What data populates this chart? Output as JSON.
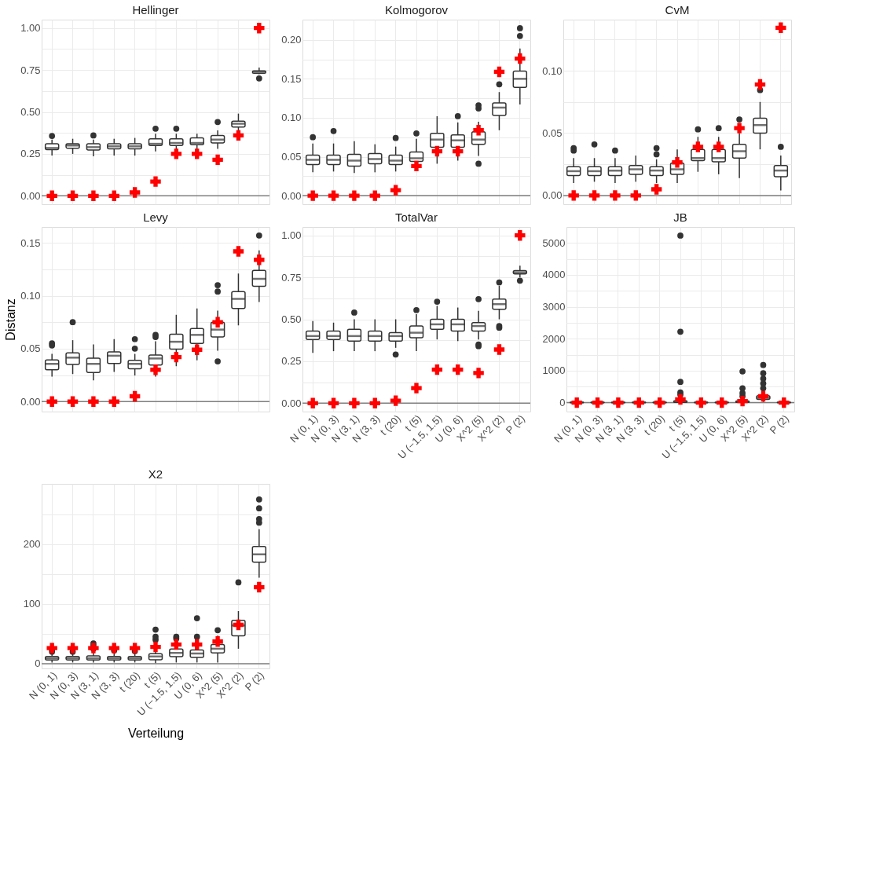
{
  "chart_data": [
    {
      "type": "box",
      "title": "Hellinger",
      "categories": [
        "N (0, 1)",
        "N (0, 3)",
        "N (3, 1)",
        "N (3, 3)",
        "t (20)",
        "t (5)",
        "U (−1.5, 1.5)",
        "U (0, 6)",
        "X^2 (5)",
        "X^2 (2)",
        "P (2)"
      ],
      "ylim": [
        -0.05,
        1.05
      ],
      "yticks": [
        {
          "value": 0,
          "label": "0.00"
        },
        {
          "value": 0.125,
          "label": null
        },
        {
          "value": 0.25,
          "label": "0.25"
        },
        {
          "value": 0.375,
          "label": null
        },
        {
          "value": 0.5,
          "label": "0.50"
        },
        {
          "value": 0.625,
          "label": null
        },
        {
          "value": 0.75,
          "label": "0.75"
        },
        {
          "value": 0.875,
          "label": null
        },
        {
          "value": 1,
          "label": "1.00"
        }
      ],
      "grid": true,
      "tick_labels": "y",
      "ref_lines": [
        {
          "axis": "y",
          "value": 0,
          "color": "#7f7f7f"
        }
      ],
      "series": [
        {
          "type": "box",
          "color": "#333333",
          "boxes": [
            {
              "low": 0.24,
              "q1": 0.275,
              "median": 0.285,
              "q3": 0.31,
              "high": 0.335,
              "outliers": [
                0.357
              ]
            },
            {
              "low": 0.25,
              "q1": 0.283,
              "median": 0.3,
              "q3": 0.31,
              "high": 0.34
            },
            {
              "low": 0.235,
              "q1": 0.273,
              "median": 0.29,
              "q3": 0.31,
              "high": 0.335,
              "outliers": [
                0.36
              ]
            },
            {
              "low": 0.24,
              "q1": 0.28,
              "median": 0.295,
              "q3": 0.31,
              "high": 0.34
            },
            {
              "low": 0.24,
              "q1": 0.28,
              "median": 0.295,
              "q3": 0.31,
              "high": 0.345
            },
            {
              "low": 0.265,
              "q1": 0.3,
              "median": 0.31,
              "q3": 0.34,
              "high": 0.37,
              "outliers": [
                0.4
              ]
            },
            {
              "low": 0.265,
              "q1": 0.3,
              "median": 0.315,
              "q3": 0.34,
              "high": 0.37,
              "outliers": [
                0.4
              ]
            },
            {
              "low": 0.27,
              "q1": 0.305,
              "median": 0.315,
              "q3": 0.345,
              "high": 0.37
            },
            {
              "low": 0.28,
              "q1": 0.315,
              "median": 0.335,
              "q3": 0.36,
              "high": 0.39,
              "outliers": [
                0.44
              ]
            },
            {
              "low": 0.39,
              "q1": 0.41,
              "median": 0.43,
              "q3": 0.445,
              "high": 0.49
            },
            {
              "low": 0.725,
              "q1": 0.73,
              "median": 0.74,
              "q3": 0.745,
              "high": 0.765,
              "outliers": [
                0.7
              ]
            }
          ]
        },
        {
          "type": "scatter",
          "color": "#ff0000",
          "marker": "cross",
          "x": [
            "N (0, 1)",
            "N (0, 3)",
            "N (3, 1)",
            "N (3, 3)",
            "t (20)",
            "t (5)",
            "U (−1.5, 1.5)",
            "U (0, 6)",
            "X^2 (5)",
            "X^2 (2)",
            "P (2)"
          ],
          "values": [
            0,
            0,
            0,
            0,
            0.02,
            0.085,
            0.25,
            0.25,
            0.215,
            0.36,
            1.0
          ]
        }
      ]
    },
    {
      "type": "box",
      "title": "Kolmogorov",
      "categories": [
        "N (0, 1)",
        "N (0, 3)",
        "N (3, 1)",
        "N (3, 3)",
        "t (20)",
        "t (5)",
        "U (−1.5, 1.5)",
        "U (0, 6)",
        "X^2 (5)",
        "X^2 (2)",
        "P (2)"
      ],
      "ylim": [
        -0.011,
        0.226
      ],
      "yticks": [
        {
          "value": 0,
          "label": "0.00"
        },
        {
          "value": 0.025,
          "label": null
        },
        {
          "value": 0.05,
          "label": "0.05"
        },
        {
          "value": 0.075,
          "label": null
        },
        {
          "value": 0.1,
          "label": "0.10"
        },
        {
          "value": 0.125,
          "label": null
        },
        {
          "value": 0.15,
          "label": "0.15"
        },
        {
          "value": 0.175,
          "label": null
        },
        {
          "value": 0.2,
          "label": "0.20"
        }
      ],
      "grid": true,
      "tick_labels": "y",
      "ref_lines": [
        {
          "axis": "y",
          "value": 0,
          "color": "#7f7f7f"
        }
      ],
      "series": [
        {
          "type": "box",
          "color": "#333333",
          "boxes": [
            {
              "low": 0.03,
              "q1": 0.04,
              "median": 0.046,
              "q3": 0.052,
              "high": 0.067,
              "outliers": [
                0.075
              ]
            },
            {
              "low": 0.031,
              "q1": 0.04,
              "median": 0.046,
              "q3": 0.052,
              "high": 0.067,
              "outliers": [
                0.083
              ]
            },
            {
              "low": 0.029,
              "q1": 0.038,
              "median": 0.045,
              "q3": 0.053,
              "high": 0.07
            },
            {
              "low": 0.03,
              "q1": 0.041,
              "median": 0.047,
              "q3": 0.054,
              "high": 0.066
            },
            {
              "low": 0.031,
              "q1": 0.04,
              "median": 0.045,
              "q3": 0.052,
              "high": 0.063,
              "outliers": [
                0.074
              ]
            },
            {
              "low": 0.034,
              "q1": 0.044,
              "median": 0.048,
              "q3": 0.056,
              "high": 0.073,
              "outliers": [
                0.08
              ]
            },
            {
              "low": 0.041,
              "q1": 0.062,
              "median": 0.072,
              "q3": 0.08,
              "high": 0.102
            },
            {
              "low": 0.045,
              "q1": 0.062,
              "median": 0.071,
              "q3": 0.078,
              "high": 0.094,
              "outliers": [
                0.102
              ]
            },
            {
              "low": 0.051,
              "q1": 0.066,
              "median": 0.072,
              "q3": 0.082,
              "high": 0.095,
              "outliers": [
                0.041,
                0.112,
                0.116
              ]
            },
            {
              "low": 0.084,
              "q1": 0.103,
              "median": 0.113,
              "q3": 0.119,
              "high": 0.133,
              "outliers": [
                0.143
              ]
            },
            {
              "low": 0.117,
              "q1": 0.139,
              "median": 0.15,
              "q3": 0.16,
              "high": 0.189,
              "outliers": [
                0.205,
                0.215
              ]
            }
          ]
        },
        {
          "type": "scatter",
          "color": "#ff0000",
          "marker": "cross",
          "x": [
            "N (0, 1)",
            "N (0, 3)",
            "N (3, 1)",
            "N (3, 3)",
            "t (20)",
            "t (5)",
            "U (−1.5, 1.5)",
            "U (0, 6)",
            "X^2 (5)",
            "X^2 (2)",
            "P (2)"
          ],
          "values": [
            0,
            0,
            0,
            0,
            0.007,
            0.038,
            0.057,
            0.057,
            0.084,
            0.159,
            0.176
          ]
        }
      ]
    },
    {
      "type": "box",
      "title": "CvM",
      "categories": [
        "N (0, 1)",
        "N (0, 3)",
        "N (3, 1)",
        "N (3, 3)",
        "t (20)",
        "t (5)",
        "U (−1.5, 1.5)",
        "U (0, 6)",
        "X^2 (5)",
        "X^2 (2)",
        "P (2)"
      ],
      "ylim": [
        -0.007,
        0.141
      ],
      "yticks": [
        {
          "value": 0,
          "label": "0.00"
        },
        {
          "value": 0.025,
          "label": null
        },
        {
          "value": 0.05,
          "label": "0.05"
        },
        {
          "value": 0.075,
          "label": null
        },
        {
          "value": 0.1,
          "label": "0.10"
        },
        {
          "value": 0.125,
          "label": null
        }
      ],
      "grid": true,
      "tick_labels": "y",
      "ref_lines": [
        {
          "axis": "y",
          "value": 0,
          "color": "#7f7f7f"
        }
      ],
      "series": [
        {
          "type": "box",
          "color": "#333333",
          "boxes": [
            {
              "low": 0.01,
              "q1": 0.016,
              "median": 0.0195,
              "q3": 0.023,
              "high": 0.03,
              "outliers": [
                0.036,
                0.038
              ]
            },
            {
              "low": 0.011,
              "q1": 0.016,
              "median": 0.0195,
              "q3": 0.023,
              "high": 0.03,
              "outliers": [
                0.041
              ]
            },
            {
              "low": 0.01,
              "q1": 0.016,
              "median": 0.02,
              "q3": 0.023,
              "high": 0.03,
              "outliers": [
                0.036
              ]
            },
            {
              "low": 0.011,
              "q1": 0.017,
              "median": 0.021,
              "q3": 0.024,
              "high": 0.032
            },
            {
              "low": 0.01,
              "q1": 0.016,
              "median": 0.02,
              "q3": 0.023,
              "high": 0.029,
              "outliers": [
                0.033,
                0.038
              ]
            },
            {
              "low": 0.01,
              "q1": 0.017,
              "median": 0.021,
              "q3": 0.026,
              "high": 0.037
            },
            {
              "low": 0.019,
              "q1": 0.028,
              "median": 0.03,
              "q3": 0.037,
              "high": 0.047,
              "outliers": [
                0.053
              ]
            },
            {
              "low": 0.017,
              "q1": 0.027,
              "median": 0.03,
              "q3": 0.037,
              "high": 0.047,
              "outliers": [
                0.054
              ]
            },
            {
              "low": 0.014,
              "q1": 0.03,
              "median": 0.0355,
              "q3": 0.041,
              "high": 0.05,
              "outliers": [
                0.061
              ]
            },
            {
              "low": 0.037,
              "q1": 0.05,
              "median": 0.0565,
              "q3": 0.062,
              "high": 0.075,
              "outliers": [
                0.0845
              ]
            },
            {
              "low": 0.004,
              "q1": 0.015,
              "median": 0.02,
              "q3": 0.024,
              "high": 0.032,
              "outliers": [
                0.039
              ]
            }
          ]
        },
        {
          "type": "scatter",
          "color": "#ff0000",
          "marker": "cross",
          "x": [
            "N (0, 1)",
            "N (0, 3)",
            "N (3, 1)",
            "N (3, 3)",
            "t (20)",
            "t (5)",
            "U (−1.5, 1.5)",
            "U (0, 6)",
            "X^2 (5)",
            "X^2 (2)",
            "P (2)"
          ],
          "values": [
            0,
            0,
            0,
            0,
            0.005,
            0.0265,
            0.039,
            0.039,
            0.054,
            0.089,
            0.1345
          ]
        }
      ]
    },
    {
      "type": "box",
      "title": "Levy",
      "ylabel": "Distanz",
      "categories": [
        "N (0, 1)",
        "N (0, 3)",
        "N (3, 1)",
        "N (3, 3)",
        "t (20)",
        "t (5)",
        "U (−1.5, 1.5)",
        "U (0, 6)",
        "X^2 (5)",
        "X^2 (2)",
        "P (2)"
      ],
      "ylim": [
        -0.0095,
        0.165
      ],
      "yticks": [
        {
          "value": 0,
          "label": "0.00"
        },
        {
          "value": 0.025,
          "label": null
        },
        {
          "value": 0.05,
          "label": "0.05"
        },
        {
          "value": 0.075,
          "label": null
        },
        {
          "value": 0.1,
          "label": "0.10"
        },
        {
          "value": 0.125,
          "label": null
        },
        {
          "value": 0.15,
          "label": "0.15"
        }
      ],
      "grid": true,
      "tick_labels": "y",
      "ref_lines": [
        {
          "axis": "y",
          "value": 0,
          "color": "#7f7f7f"
        }
      ],
      "series": [
        {
          "type": "box",
          "color": "#333333",
          "boxes": [
            {
              "low": 0.0235,
              "q1": 0.03,
              "median": 0.0356,
              "q3": 0.0394,
              "high": 0.045,
              "outliers": [
                0.053,
                0.055
              ]
            },
            {
              "low": 0.026,
              "q1": 0.035,
              "median": 0.0415,
              "q3": 0.046,
              "high": 0.058,
              "outliers": [
                0.075
              ]
            },
            {
              "low": 0.02,
              "q1": 0.0275,
              "median": 0.0356,
              "q3": 0.041,
              "high": 0.054
            },
            {
              "low": 0.028,
              "q1": 0.036,
              "median": 0.0433,
              "q3": 0.047,
              "high": 0.059
            },
            {
              "low": 0.0246,
              "q1": 0.031,
              "median": 0.0356,
              "q3": 0.039,
              "high": 0.045,
              "outliers": [
                0.05,
                0.059
              ]
            },
            {
              "low": 0.0235,
              "q1": 0.0345,
              "median": 0.0407,
              "q3": 0.044,
              "high": 0.057,
              "outliers": [
                0.061,
                0.063
              ]
            },
            {
              "low": 0.0334,
              "q1": 0.0495,
              "median": 0.0565,
              "q3": 0.0636,
              "high": 0.082
            },
            {
              "low": 0.039,
              "q1": 0.055,
              "median": 0.063,
              "q3": 0.069,
              "high": 0.088
            },
            {
              "low": 0.048,
              "q1": 0.061,
              "median": 0.068,
              "q3": 0.075,
              "high": 0.086,
              "outliers": [
                0.038,
                0.104,
                0.11
              ]
            },
            {
              "low": 0.072,
              "q1": 0.088,
              "median": 0.097,
              "q3": 0.104,
              "high": 0.121
            },
            {
              "low": 0.094,
              "q1": 0.109,
              "median": 0.116,
              "q3": 0.124,
              "high": 0.143,
              "outliers": [
                0.157
              ]
            }
          ]
        },
        {
          "type": "scatter",
          "color": "#ff0000",
          "marker": "cross",
          "x": [
            "N (0, 1)",
            "N (0, 3)",
            "N (3, 1)",
            "N (3, 3)",
            "t (20)",
            "t (5)",
            "U (−1.5, 1.5)",
            "U (0, 6)",
            "X^2 (5)",
            "X^2 (2)",
            "P (2)"
          ],
          "values": [
            0,
            0,
            0,
            0,
            0.005,
            0.03,
            0.042,
            0.049,
            0.075,
            0.142,
            0.134
          ]
        }
      ]
    },
    {
      "type": "box",
      "title": "TotalVar",
      "categories": [
        "N (0, 1)",
        "N (0, 3)",
        "N (3, 1)",
        "N (3, 3)",
        "t (20)",
        "t (5)",
        "U (−1.5, 1.5)",
        "U (0, 6)",
        "X^2 (5)",
        "X^2 (2)",
        "P (2)"
      ],
      "ylim": [
        -0.05,
        1.05
      ],
      "yticks": [
        {
          "value": 0,
          "label": "0.00"
        },
        {
          "value": 0.125,
          "label": null
        },
        {
          "value": 0.25,
          "label": "0.25"
        },
        {
          "value": 0.375,
          "label": null
        },
        {
          "value": 0.5,
          "label": "0.50"
        },
        {
          "value": 0.625,
          "label": null
        },
        {
          "value": 0.75,
          "label": "0.75"
        },
        {
          "value": 0.875,
          "label": null
        },
        {
          "value": 1,
          "label": "1.00"
        }
      ],
      "grid": true,
      "ref_lines": [
        {
          "axis": "y",
          "value": 0,
          "color": "#7f7f7f"
        }
      ],
      "series": [
        {
          "type": "box",
          "color": "#333333",
          "boxes": [
            {
              "low": 0.3,
              "q1": 0.38,
              "median": 0.4,
              "q3": 0.43,
              "high": 0.49
            },
            {
              "low": 0.31,
              "q1": 0.38,
              "median": 0.4,
              "q3": 0.43,
              "high": 0.48
            },
            {
              "low": 0.31,
              "q1": 0.37,
              "median": 0.4,
              "q3": 0.44,
              "high": 0.5,
              "outliers": [
                0.54
              ]
            },
            {
              "low": 0.31,
              "q1": 0.37,
              "median": 0.4,
              "q3": 0.43,
              "high": 0.5
            },
            {
              "low": 0.33,
              "q1": 0.37,
              "median": 0.4,
              "q3": 0.42,
              "high": 0.5,
              "outliers": [
                0.29
              ]
            },
            {
              "low": 0.31,
              "q1": 0.39,
              "median": 0.42,
              "q3": 0.46,
              "high": 0.53,
              "outliers": [
                0.555
              ]
            },
            {
              "low": 0.38,
              "q1": 0.44,
              "median": 0.47,
              "q3": 0.5,
              "high": 0.58,
              "outliers": [
                0.605
              ]
            },
            {
              "low": 0.37,
              "q1": 0.43,
              "median": 0.47,
              "q3": 0.5,
              "high": 0.57
            },
            {
              "low": 0.38,
              "q1": 0.43,
              "median": 0.46,
              "q3": 0.48,
              "high": 0.55,
              "outliers": [
                0.34,
                0.35,
                0.62
              ]
            },
            {
              "low": 0.5,
              "q1": 0.56,
              "median": 0.59,
              "q3": 0.62,
              "high": 0.7,
              "outliers": [
                0.45,
                0.46,
                0.72
              ]
            },
            {
              "low": 0.75,
              "q1": 0.77,
              "median": 0.78,
              "q3": 0.79,
              "high": 0.82,
              "outliers": [
                0.73
              ]
            }
          ]
        },
        {
          "type": "scatter",
          "color": "#ff0000",
          "marker": "cross",
          "x": [
            "N (0, 1)",
            "N (0, 3)",
            "N (3, 1)",
            "N (3, 3)",
            "t (20)",
            "t (5)",
            "U (−1.5, 1.5)",
            "U (0, 6)",
            "X^2 (5)",
            "X^2 (2)",
            "P (2)"
          ],
          "values": [
            0,
            0,
            0,
            0,
            0.015,
            0.09,
            0.2,
            0.2,
            0.18,
            0.32,
            1.0
          ]
        }
      ]
    },
    {
      "type": "box",
      "title": "JB",
      "categories": [
        "N (0, 1)",
        "N (0, 3)",
        "N (3, 1)",
        "N (3, 3)",
        "t (20)",
        "t (5)",
        "U (−1.5, 1.5)",
        "U (0, 6)",
        "X^2 (5)",
        "X^2 (2)",
        "P (2)"
      ],
      "ylim": [
        -280,
        5500
      ],
      "yticks": [
        0,
        {
          "value": 500,
          "label": null
        },
        1000,
        {
          "value": 1500,
          "label": null
        },
        2000,
        {
          "value": 2500,
          "label": null
        },
        3000,
        {
          "value": 3500,
          "label": null
        },
        4000,
        {
          "value": 4500,
          "label": null
        },
        5000
      ],
      "grid": true,
      "ref_lines": [
        {
          "axis": "y",
          "value": 0,
          "color": "#7f7f7f"
        }
      ],
      "series": [
        {
          "type": "box",
          "color": "#333333",
          "boxes": [
            {
              "low": 0,
              "q1": 2,
              "median": 5,
              "q3": 10,
              "high": 30
            },
            {
              "low": 0,
              "q1": 2,
              "median": 5,
              "q3": 10,
              "high": 30
            },
            {
              "low": 0,
              "q1": 2,
              "median": 5,
              "q3": 10,
              "high": 30
            },
            {
              "low": 0,
              "q1": 2,
              "median": 5,
              "q3": 10,
              "high": 30
            },
            {
              "low": 0,
              "q1": 2,
              "median": 5,
              "q3": 10,
              "high": 30
            },
            {
              "low": 0,
              "q1": 10,
              "median": 30,
              "q3": 60,
              "high": 150,
              "outliers": [
                250,
                320,
                650,
                2220,
                5230
              ]
            },
            {
              "low": 0,
              "q1": 2,
              "median": 5,
              "q3": 10,
              "high": 30
            },
            {
              "low": 0,
              "q1": 2,
              "median": 5,
              "q3": 10,
              "high": 30
            },
            {
              "low": 0,
              "q1": 10,
              "median": 30,
              "q3": 50,
              "high": 120,
              "outliers": [
                200,
                300,
                450,
                980
              ]
            },
            {
              "low": 20,
              "q1": 100,
              "median": 150,
              "q3": 220,
              "high": 350,
              "outliers": [
                450,
                600,
                750,
                920,
                1180
              ]
            },
            {
              "low": 0,
              "q1": 2,
              "median": 5,
              "q3": 10,
              "high": 30
            }
          ]
        },
        {
          "type": "scatter",
          "color": "#ff0000",
          "marker": "cross",
          "x": [
            "N (0, 1)",
            "N (0, 3)",
            "N (3, 1)",
            "N (3, 3)",
            "t (20)",
            "t (5)",
            "U (−1.5, 1.5)",
            "U (0, 6)",
            "X^2 (5)",
            "X^2 (2)",
            "P (2)"
          ],
          "values": [
            0,
            0,
            0,
            0,
            0,
            100,
            0,
            0,
            50,
            200,
            0
          ]
        }
      ]
    },
    {
      "type": "box",
      "title": "X2",
      "xlabel": "Verteilung",
      "categories": [
        "N (0, 1)",
        "N (0, 3)",
        "N (3, 1)",
        "N (3, 3)",
        "t (20)",
        "t (5)",
        "U (−1.5, 1.5)",
        "U (0, 6)",
        "X^2 (5)",
        "X^2 (2)",
        "P (2)"
      ],
      "ylim": [
        -8,
        301
      ],
      "yticks": [
        0,
        {
          "value": 50,
          "label": null
        },
        100,
        {
          "value": 150,
          "label": null
        },
        200,
        {
          "value": 250,
          "label": null
        }
      ],
      "grid": true,
      "ref_lines": [
        {
          "axis": "y",
          "value": 0,
          "color": "#7f7f7f"
        }
      ],
      "series": [
        {
          "type": "box",
          "color": "#333333",
          "boxes": [
            {
              "low": 2,
              "q1": 6,
              "median": 9,
              "q3": 12,
              "high": 18,
              "outliers": [
                20,
                24
              ]
            },
            {
              "low": 2,
              "q1": 6,
              "median": 9,
              "q3": 12,
              "high": 18,
              "outliers": [
                20,
                25
              ]
            },
            {
              "low": 2,
              "q1": 6,
              "median": 9,
              "q3": 13,
              "high": 20,
              "outliers": [
                25,
                30,
                34
              ]
            },
            {
              "low": 2,
              "q1": 6,
              "median": 9,
              "q3": 12,
              "high": 18,
              "outliers": [
                22
              ]
            },
            {
              "low": 2,
              "q1": 6,
              "median": 9,
              "q3": 12,
              "high": 18,
              "outliers": [
                21
              ]
            },
            {
              "low": 1,
              "q1": 6.6,
              "median": 12,
              "q3": 16.7,
              "high": 30,
              "outliers": [
                40,
                45,
                57
              ]
            },
            {
              "low": 2,
              "q1": 11.7,
              "median": 18,
              "q3": 24.5,
              "high": 35,
              "outliers": [
                42,
                45
              ]
            },
            {
              "low": 2,
              "q1": 10.5,
              "median": 17,
              "q3": 23,
              "high": 35,
              "outliers": [
                45,
                76
              ]
            },
            {
              "low": 2,
              "q1": 18,
              "median": 25,
              "q3": 32,
              "high": 47,
              "outliers": [
                56
              ]
            },
            {
              "low": 25,
              "q1": 46.6,
              "median": 64,
              "q3": 72.6,
              "high": 88,
              "outliers": [
                136
              ]
            },
            {
              "low": 144,
              "q1": 170,
              "median": 183,
              "q3": 196,
              "high": 225,
              "outliers": [
                236,
                242,
                260,
                275
              ]
            }
          ]
        },
        {
          "type": "scatter",
          "color": "#ff0000",
          "marker": "cross",
          "x": [
            "N (0, 1)",
            "N (0, 3)",
            "N (3, 1)",
            "N (3, 3)",
            "t (20)",
            "t (5)",
            "U (−1.5, 1.5)",
            "U (0, 6)",
            "X^2 (5)",
            "X^2 (2)",
            "P (2)"
          ],
          "values": [
            26,
            26,
            26,
            26,
            26,
            28,
            32,
            32,
            37,
            65,
            128
          ]
        }
      ]
    }
  ]
}
